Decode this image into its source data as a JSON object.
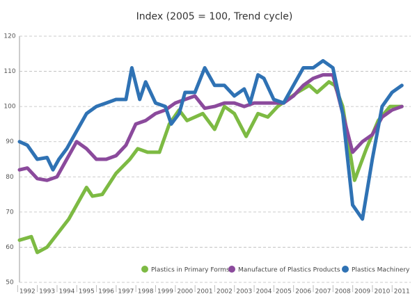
{
  "chart_data": {
    "type": "line",
    "title": "Index (2005 = 100, Trend cycle)",
    "xlim": [
      1991.6,
      2011.45
    ],
    "xticks": [
      1992,
      1993,
      1994,
      1995,
      1996,
      1997,
      1998,
      1999,
      2000,
      2001,
      2002,
      2003,
      2004,
      2005,
      2006,
      2007,
      2008,
      2009,
      2010,
      2011
    ],
    "ylim": [
      50,
      120
    ],
    "yticks": [
      50,
      60,
      70,
      80,
      90,
      100,
      110,
      120
    ],
    "grid": true,
    "legend": "bottom-right",
    "series": [
      {
        "name": "Plastics in Primary Forms",
        "color": "#7dba43",
        "x": [
          1991.6,
          1992.2,
          1992.5,
          1993,
          1994.1,
          1995,
          1995.3,
          1995.8,
          1996.5,
          1997.2,
          1997.6,
          1998.1,
          1998.7,
          1999.2,
          1999.7,
          2000.1,
          2000.9,
          2001.5,
          2002,
          2002.5,
          2003.1,
          2003.7,
          2004.2,
          2004.7,
          2005.2,
          2005.7,
          2006.3,
          2006.7,
          2007.3,
          2007.6,
          2008,
          2008.6,
          2009.2,
          2009.8,
          2010.4,
          2011
        ],
        "values": [
          62,
          63,
          58.5,
          60,
          68,
          77,
          74.5,
          75,
          81,
          85,
          88,
          87,
          87,
          95,
          99,
          96,
          98,
          93.5,
          100,
          98,
          91.5,
          98,
          97,
          100,
          102,
          104,
          106,
          104,
          107,
          106,
          100,
          79,
          88,
          96,
          100,
          100
        ]
      },
      {
        "name": "Manufacture of Plastics Products",
        "color": "#8b4a9c",
        "x": [
          1991.6,
          1992,
          1992.5,
          1993,
          1993.5,
          1994,
          1994.5,
          1995,
          1995.5,
          1996,
          1996.5,
          1997,
          1997.5,
          1998,
          1998.5,
          1999,
          1999.5,
          2000,
          2000.5,
          2001,
          2001.5,
          2002,
          2002.5,
          2003,
          2003.5,
          2004,
          2004.5,
          2005,
          2005.5,
          2006,
          2006.5,
          2007,
          2007.5,
          2008,
          2008.5,
          2009,
          2009.5,
          2010,
          2010.5,
          2011
        ],
        "values": [
          82,
          82.5,
          79.5,
          79,
          80,
          85,
          90,
          88,
          85,
          85,
          86,
          89,
          95,
          96,
          98,
          99,
          101,
          102,
          103,
          99.5,
          100,
          101,
          101,
          100,
          101,
          101,
          101,
          101,
          103,
          106,
          108,
          109,
          109,
          98,
          87,
          90,
          92,
          97,
          99,
          100
        ]
      },
      {
        "name": "Plastics Machinery",
        "color": "#2f72b4",
        "x": [
          1991.6,
          1992,
          1992.5,
          1993,
          1993.3,
          1993.6,
          1994,
          1994.5,
          1995,
          1995.5,
          1996,
          1996.5,
          1997,
          1997.3,
          1997.7,
          1998,
          1998.5,
          1999,
          1999.3,
          1999.7,
          2000,
          2000.5,
          2001,
          2001.5,
          2002,
          2002.5,
          2003,
          2003.3,
          2003.7,
          2004,
          2004.5,
          2005,
          2005.5,
          2006,
          2006.5,
          2007,
          2007.5,
          2008,
          2008.5,
          2009,
          2009.5,
          2010,
          2010.5,
          2011
        ],
        "values": [
          90,
          89,
          85,
          85.5,
          82,
          85,
          88,
          93,
          98,
          100,
          101,
          102,
          102,
          111,
          102,
          107,
          101,
          100,
          95,
          98,
          104,
          104,
          111,
          106,
          106,
          103,
          105,
          101,
          109,
          108,
          102,
          101,
          106,
          111,
          111,
          113,
          111,
          98,
          72,
          68,
          85,
          100,
          104,
          106
        ]
      }
    ]
  }
}
